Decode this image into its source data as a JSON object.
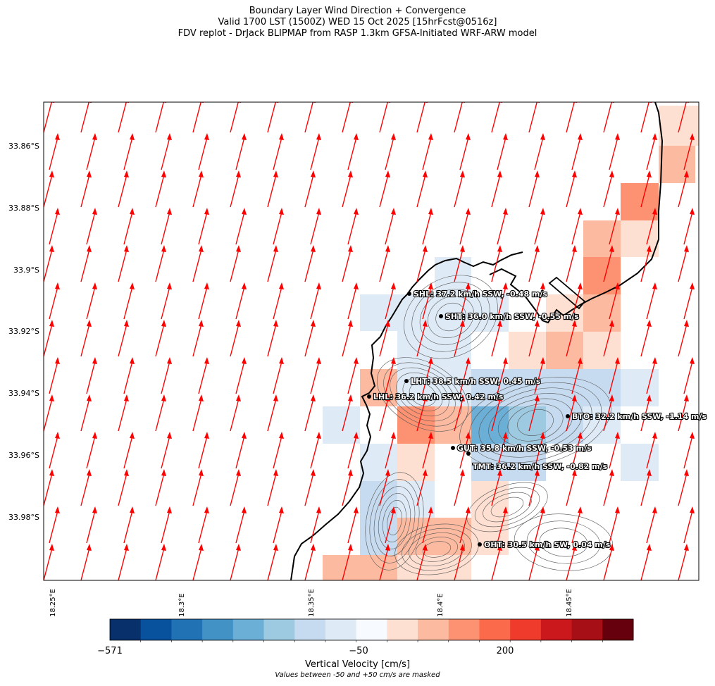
{
  "title": {
    "line1": "Boundary Layer Wind Direction + Convergence",
    "line2": "Valid 1700 LST (1500Z) WED 15 Oct 2025 [15hrFcst@0516z]",
    "line3": "FDV replot - DrJack BLIPMAP from RASP 1.3km GFSA-Initiated WRF-ARW model"
  },
  "axes": {
    "lon_ticks": [
      "18.25°E",
      "18.3°E",
      "18.35°E",
      "18.4°E",
      "18.45°E"
    ],
    "lat_ticks": [
      "33.86°S",
      "33.88°S",
      "33.9°S",
      "33.92°S",
      "33.94°S",
      "33.96°S",
      "33.98°S"
    ]
  },
  "map": {
    "wind_arrow_color": "#ff0000",
    "coastline_color": "#000000",
    "contour_color": "#555555"
  },
  "stations": [
    {
      "label": "SHL: 37.2 km/h SSW, -0.48 m/s"
    },
    {
      "label": "SHT: 36.0 km/h SSW, -0.55 m/s"
    },
    {
      "label": "LHT: 38.5 km/h SSW, 0.45 m/s"
    },
    {
      "label": "LHL: 36.2 km/h SSW, 0.42 m/s"
    },
    {
      "label": "BTO: 32.2 km/h SSW, -1.14 m/s"
    },
    {
      "label": "GUT: 35.8 km/h SSW, -0.53 m/s"
    },
    {
      "label": "TMT: 36.2 km/h SSW, -0.82 m/s"
    },
    {
      "label": "OHT: 30.5 km/h SW, 0.04 m/s"
    }
  ],
  "colorbar": {
    "tick_labels": [
      "−571",
      "−50",
      "200"
    ],
    "title": "Vertical Velocity [cm/s]",
    "note": "Values between -50 and +50 cm/s are masked",
    "colors": [
      "#08306b",
      "#08519c",
      "#2171b5",
      "#4292c6",
      "#6baed6",
      "#9ecae1",
      "#c6dbef",
      "#deebf7",
      "#f7fbff",
      "#fee0d2",
      "#fcbba1",
      "#fc9272",
      "#fb6a4a",
      "#ef3b2c",
      "#cb181d",
      "#a50f15",
      "#67000d"
    ]
  }
}
